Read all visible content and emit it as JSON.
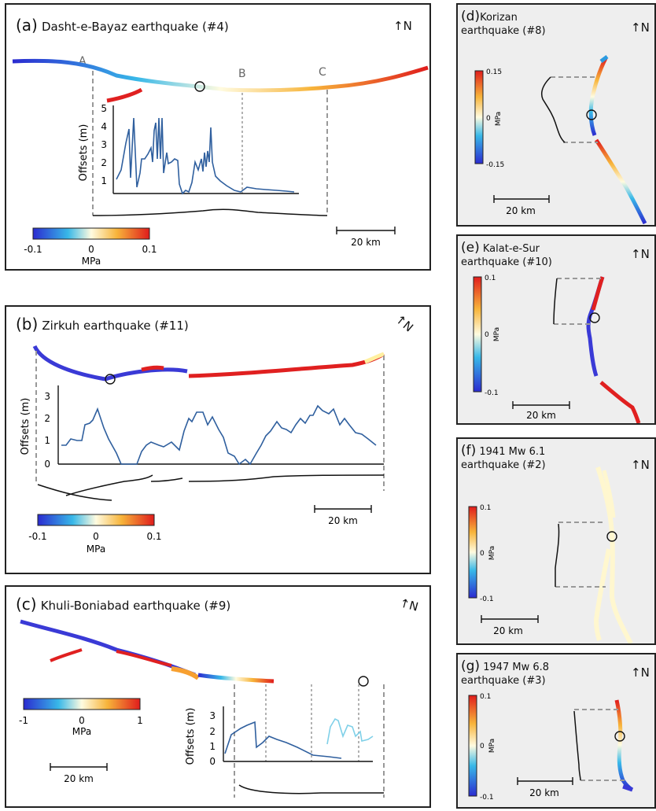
{
  "panels": {
    "a": {
      "label": "(a)",
      "name": "Dasht-e-Bayaz earthquake (#4)",
      "points": [
        "A",
        "B",
        "C"
      ],
      "ylabel": "Offsets (m)",
      "yticks": [
        "1",
        "2",
        "3",
        "4",
        "5"
      ],
      "cbar": {
        "min": "-0.1",
        "mid": "0",
        "max": "0.1",
        "unit": "MPa"
      },
      "scale": "20 km",
      "north": "N"
    },
    "b": {
      "label": "(b)",
      "name": "Zirkuh earthquake (#11)",
      "ylabel": "Offsets (m)",
      "yticks": [
        "0",
        "1",
        "2",
        "3"
      ],
      "cbar": {
        "min": "-0.1",
        "mid": "0",
        "max": "0.1",
        "unit": "MPa"
      },
      "scale": "20 km",
      "north": "N"
    },
    "c": {
      "label": "(c)",
      "name": "Khuli-Boniabad earthquake (#9)",
      "ylabel": "Offsets (m)",
      "yticks": [
        "0",
        "1",
        "2",
        "3"
      ],
      "cbar": {
        "min": "-1",
        "mid": "0",
        "max": "1",
        "unit": "MPa"
      },
      "scale": "20 km",
      "north": "N"
    },
    "d": {
      "label": "(d)",
      "name_line1": "Korizan",
      "name_line2": "earthquake (#8)",
      "cbar": {
        "max": "0.15",
        "mid": "0",
        "min": "-0.15",
        "unit": "MPa"
      },
      "scale": "20 km",
      "north": "N"
    },
    "e": {
      "label": "(e)",
      "name_line1": "Kalat-e-Sur",
      "name_line2": "earthquake (#10)",
      "cbar": {
        "max": "0.1",
        "mid": "0",
        "min": "-0.1",
        "unit": "MPa"
      },
      "scale": "20 km",
      "north": "N"
    },
    "f": {
      "label": "(f)",
      "name_line1": "1941 Mw 6.1",
      "name_line2": "earthquake (#2)",
      "cbar": {
        "max": "0.1",
        "mid": "0",
        "min": "-0.1",
        "unit": "MPa"
      },
      "scale": "20 km",
      "north": "N"
    },
    "g": {
      "label": "(g)",
      "name_line1": "1947 Mw 6.8",
      "name_line2": "earthquake (#3)",
      "cbar": {
        "max": "0.1",
        "mid": "0",
        "min": "-0.1",
        "unit": "MPa"
      },
      "scale": "20 km",
      "north": "N"
    }
  },
  "colors": {
    "stress_low": "#2b3bd6",
    "stress_mid": "#fffbe0",
    "stress_high": "#e0201c",
    "offset_line": "#2f5f9e",
    "offset_line_light": "#7fd0e8",
    "guide_dash": "#999999"
  }
}
